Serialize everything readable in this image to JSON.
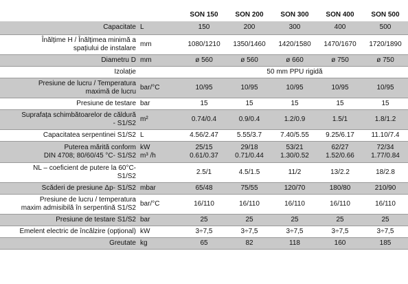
{
  "header": {
    "columns": [
      "SON 150",
      "SON 200",
      "SON 300",
      "SON 400",
      "SON 500"
    ]
  },
  "rows": [
    {
      "label": [
        "Capacitate"
      ],
      "unit": [
        "L"
      ],
      "values": [
        [
          "150"
        ],
        [
          "200"
        ],
        [
          "300"
        ],
        [
          "400"
        ],
        [
          "500"
        ]
      ],
      "grey": true
    },
    {
      "label": [
        "Înălțime H / Înălțimea minimă a",
        "spațiului de instalare"
      ],
      "unit": [
        "mm"
      ],
      "values": [
        [
          "1080/1210"
        ],
        [
          "1350/1460"
        ],
        [
          "1420/1580"
        ],
        [
          "1470/1670"
        ],
        [
          "1720/1890"
        ]
      ],
      "grey": false
    },
    {
      "label": [
        "Diametru D"
      ],
      "unit": [
        "mm"
      ],
      "values": [
        [
          "ø 560"
        ],
        [
          "ø 560"
        ],
        [
          "ø 660"
        ],
        [
          "ø 750"
        ],
        [
          "ø 750"
        ]
      ],
      "grey": true
    },
    {
      "label": [
        "Izolație"
      ],
      "unit": [
        ""
      ],
      "span": "50 mm PPU rigidă",
      "grey": false
    },
    {
      "label": [
        "Presiune de lucru / Temperatura",
        "maximă de lucru"
      ],
      "unit": [
        "bar/°C"
      ],
      "values": [
        [
          "10/95"
        ],
        [
          "10/95"
        ],
        [
          "10/95"
        ],
        [
          "10/95"
        ],
        [
          "10/95"
        ]
      ],
      "grey": true
    },
    {
      "label": [
        "Presiune de testare"
      ],
      "unit": [
        "bar"
      ],
      "values": [
        [
          "15"
        ],
        [
          "15"
        ],
        [
          "15"
        ],
        [
          "15"
        ],
        [
          "15"
        ]
      ],
      "grey": false
    },
    {
      "label": [
        "Suprafața schimbătoarelor de căldură",
        "- S1/S2"
      ],
      "unit": [
        "m²"
      ],
      "values": [
        [
          "0.74/0.4"
        ],
        [
          "0.9/0.4"
        ],
        [
          "1.2/0.9"
        ],
        [
          "1.5/1"
        ],
        [
          "1.8/1.2"
        ]
      ],
      "grey": true
    },
    {
      "label": [
        "Capacitatea serpentinei  S1/S2"
      ],
      "unit": [
        "L"
      ],
      "values": [
        [
          "4.56/2.47"
        ],
        [
          "5.55/3.7"
        ],
        [
          "7.40/5.55"
        ],
        [
          "9.25/6.17"
        ],
        [
          "11.10/7.4"
        ]
      ],
      "grey": false
    },
    {
      "label": [
        "Puterea mărită conform",
        "DIN 4708; 80/60/45 °C- S1/S2"
      ],
      "unit": [
        "kW",
        "m³ /h"
      ],
      "values": [
        [
          "25/15",
          "0.61/0.37"
        ],
        [
          "29/18",
          "0.71/0.44"
        ],
        [
          "53/21",
          "1.30/0.52"
        ],
        [
          "62/27",
          "1.52/0.66"
        ],
        [
          "72/34",
          "1.77/0.84"
        ]
      ],
      "grey": true
    },
    {
      "label": [
        "NL – coeficient de putere la 60°C-",
        "S1/S2"
      ],
      "unit": [
        ""
      ],
      "values": [
        [
          "2.5/1"
        ],
        [
          "4.5/1.5"
        ],
        [
          "11/2"
        ],
        [
          "13/2.2"
        ],
        [
          "18/2.8"
        ]
      ],
      "grey": false
    },
    {
      "label": [
        "Scăderi de presiune  Δp- S1/S2"
      ],
      "unit": [
        "mbar"
      ],
      "values": [
        [
          "65/48"
        ],
        [
          "75/55"
        ],
        [
          "120/70"
        ],
        [
          "180/80"
        ],
        [
          "210/90"
        ]
      ],
      "grey": true
    },
    {
      "label": [
        "Presiune de lucru / temperatura",
        "maxim admisibilă în serpentină S1/S2"
      ],
      "unit": [
        "bar/°C"
      ],
      "values": [
        [
          "16/110"
        ],
        [
          "16/110"
        ],
        [
          "16/110"
        ],
        [
          "16/110"
        ],
        [
          "16/110"
        ]
      ],
      "grey": false
    },
    {
      "label": [
        "Presiune de testare  S1/S2"
      ],
      "unit": [
        "bar"
      ],
      "values": [
        [
          "25"
        ],
        [
          "25"
        ],
        [
          "25"
        ],
        [
          "25"
        ],
        [
          "25"
        ]
      ],
      "grey": true
    },
    {
      "label": [
        "Emelent electric de încălzire (opțional)"
      ],
      "unit": [
        "kW"
      ],
      "values": [
        [
          "3÷7,5"
        ],
        [
          "3÷7,5"
        ],
        [
          "3÷7,5"
        ],
        [
          "3÷7,5"
        ],
        [
          "3÷7,5"
        ]
      ],
      "grey": false
    },
    {
      "label": [
        "Greutate"
      ],
      "unit": [
        "kg"
      ],
      "values": [
        [
          "65"
        ],
        [
          "82"
        ],
        [
          "118"
        ],
        [
          "160"
        ],
        [
          "185"
        ]
      ],
      "grey": true
    }
  ]
}
